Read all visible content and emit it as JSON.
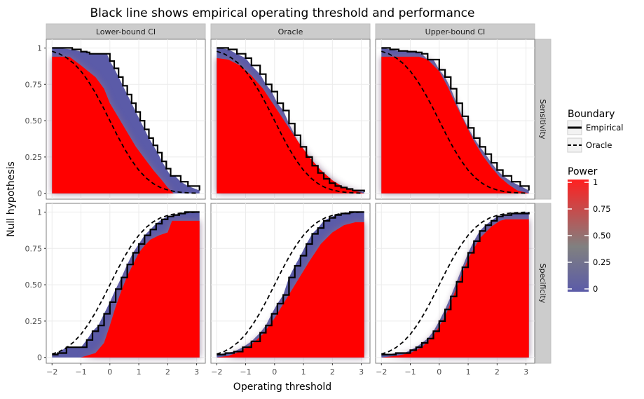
{
  "chart_data": {
    "type": "line",
    "title": "Black line shows empirical operating threshold and performance",
    "xlabel": "Operating threshold",
    "ylabel": "Null hypothesis",
    "xlim": [
      -2.2,
      3.3
    ],
    "ylim": [
      -0.04,
      1.06
    ],
    "x_ticks": [
      -2,
      -1,
      0,
      1,
      2,
      3
    ],
    "x_tick_labels": [
      "−2",
      "−1",
      "0",
      "1",
      "2",
      "3"
    ],
    "y_ticks": [
      0,
      0.25,
      0.5,
      0.75,
      1
    ],
    "y_tick_labels": [
      "0",
      "0.25",
      "0.50",
      "0.75",
      "1"
    ],
    "grid": true,
    "facet_columns": [
      "Lower-bound CI",
      "Oracle",
      "Upper-bound CI"
    ],
    "facet_rows": [
      "Sensitivity",
      "Specificity"
    ],
    "legend": {
      "position": "right",
      "boundary_title": "Boundary",
      "boundary_entries": [
        "Empirical",
        "Oracle"
      ],
      "power_title": "Power",
      "power_labels": [
        "1",
        "0.75",
        "0.50",
        "0.25",
        "0"
      ],
      "power_values": [
        1,
        0.75,
        0.5,
        0.25,
        0
      ],
      "power_colors": {
        "low": "#5b5ba8",
        "mid": "#808080",
        "high": "#ff0000"
      }
    },
    "colors": {
      "empirical": "#000000",
      "oracle": "#000000",
      "panel_strip": "#cccccc",
      "grid": "#ebebeb"
    },
    "oracle_curve": {
      "x": [
        -2.0,
        -1.75,
        -1.5,
        -1.25,
        -1.0,
        -0.75,
        -0.5,
        -0.25,
        0.0,
        0.25,
        0.5,
        0.75,
        1.0,
        1.25,
        1.5,
        1.75,
        2.0,
        2.25,
        2.5,
        2.75,
        3.0
      ],
      "sensitivity": [
        0.977,
        0.96,
        0.933,
        0.894,
        0.841,
        0.773,
        0.691,
        0.599,
        0.5,
        0.401,
        0.309,
        0.227,
        0.159,
        0.106,
        0.067,
        0.04,
        0.023,
        0.012,
        0.006,
        0.003,
        0.001
      ],
      "specificity": [
        0.023,
        0.04,
        0.067,
        0.106,
        0.159,
        0.227,
        0.309,
        0.401,
        0.5,
        0.599,
        0.691,
        0.773,
        0.841,
        0.894,
        0.933,
        0.96,
        0.977,
        0.988,
        0.994,
        0.997,
        0.999
      ]
    },
    "panels": [
      {
        "row": "Sensitivity",
        "col": "Lower-bound CI",
        "empirical": {
          "x": [
            -2.0,
            -1.3,
            -1.0,
            -0.8,
            -0.7,
            -0.1,
            0.0,
            0.15,
            0.3,
            0.45,
            0.6,
            0.75,
            0.9,
            1.05,
            1.2,
            1.35,
            1.5,
            1.65,
            1.8,
            1.95,
            2.1,
            2.25,
            2.45,
            2.7,
            3.1
          ],
          "y": [
            1.0,
            0.99,
            0.975,
            0.97,
            0.96,
            0.96,
            0.91,
            0.86,
            0.8,
            0.74,
            0.68,
            0.62,
            0.56,
            0.5,
            0.44,
            0.38,
            0.33,
            0.28,
            0.22,
            0.17,
            0.12,
            0.12,
            0.08,
            0.05,
            0.02
          ]
        },
        "red_region": {
          "x": [
            -2.0,
            -1.4,
            -1.0,
            -0.5,
            -0.2,
            0.0,
            0.3,
            0.6,
            0.9,
            1.2,
            1.5,
            1.8,
            2.0,
            2.2,
            3.1
          ],
          "y": [
            0.94,
            0.94,
            0.88,
            0.8,
            0.72,
            0.62,
            0.52,
            0.42,
            0.32,
            0.24,
            0.16,
            0.09,
            0.04,
            0.0,
            0.0
          ]
        }
      },
      {
        "row": "Sensitivity",
        "col": "Oracle",
        "empirical": {
          "x": [
            -2.0,
            -1.6,
            -1.3,
            -1.0,
            -0.8,
            -0.5,
            -0.3,
            -0.1,
            0.1,
            0.3,
            0.5,
            0.7,
            0.9,
            1.1,
            1.3,
            1.5,
            1.7,
            1.9,
            2.1,
            2.3,
            2.5,
            2.7,
            3.1
          ],
          "y": [
            1.0,
            0.99,
            0.96,
            0.93,
            0.88,
            0.82,
            0.75,
            0.7,
            0.62,
            0.57,
            0.48,
            0.4,
            0.32,
            0.25,
            0.19,
            0.14,
            0.1,
            0.07,
            0.05,
            0.04,
            0.03,
            0.02,
            0.01
          ]
        },
        "red_region": {
          "x": [
            -2.0,
            -1.6,
            -1.2,
            -0.8,
            -0.4,
            0.0,
            0.4,
            0.8,
            1.2,
            1.6,
            2.0,
            2.4,
            2.8,
            3.1
          ],
          "y": [
            0.93,
            0.92,
            0.88,
            0.81,
            0.72,
            0.6,
            0.48,
            0.36,
            0.25,
            0.16,
            0.09,
            0.04,
            0.015,
            0.0
          ]
        }
      },
      {
        "row": "Sensitivity",
        "col": "Upper-bound CI",
        "empirical": {
          "x": [
            -2.0,
            -1.7,
            -1.4,
            -1.1,
            -0.8,
            -0.6,
            -0.4,
            -0.2,
            0.0,
            0.2,
            0.4,
            0.6,
            0.8,
            1.0,
            1.2,
            1.4,
            1.6,
            1.8,
            2.0,
            2.2,
            2.5,
            2.8,
            3.1
          ],
          "y": [
            1.0,
            0.99,
            0.98,
            0.975,
            0.97,
            0.96,
            0.92,
            0.92,
            0.85,
            0.8,
            0.72,
            0.62,
            0.53,
            0.45,
            0.38,
            0.32,
            0.27,
            0.21,
            0.16,
            0.12,
            0.08,
            0.05,
            0.02
          ]
        },
        "red_region": {
          "x": [
            -2.0,
            -0.7,
            -0.4,
            0.0,
            0.3,
            0.6,
            0.9,
            1.2,
            1.5,
            1.8,
            2.1,
            2.4,
            2.7,
            3.1
          ],
          "y": [
            0.94,
            0.94,
            0.92,
            0.84,
            0.73,
            0.6,
            0.48,
            0.36,
            0.26,
            0.18,
            0.11,
            0.06,
            0.02,
            0.0
          ]
        }
      },
      {
        "row": "Specificity",
        "col": "Lower-bound CI",
        "empirical": {
          "x": [
            -2.0,
            -1.8,
            -1.5,
            -1.0,
            -0.8,
            -0.6,
            -0.4,
            -0.2,
            0.0,
            0.2,
            0.4,
            0.6,
            0.8,
            1.0,
            1.2,
            1.4,
            1.6,
            1.8,
            2.0,
            2.2,
            2.4,
            2.6,
            3.1
          ],
          "y": [
            0.02,
            0.03,
            0.07,
            0.07,
            0.12,
            0.18,
            0.22,
            0.3,
            0.38,
            0.47,
            0.55,
            0.64,
            0.72,
            0.78,
            0.84,
            0.88,
            0.92,
            0.95,
            0.97,
            0.98,
            0.99,
            1.0,
            1.0
          ]
        },
        "red_region": {
          "x": [
            -2.0,
            -1.0,
            -0.5,
            -0.2,
            0.0,
            0.2,
            0.4,
            0.6,
            0.8,
            1.0,
            1.2,
            1.4,
            1.7,
            2.0,
            2.15,
            3.1
          ],
          "y": [
            0.0,
            0.0,
            0.03,
            0.1,
            0.22,
            0.35,
            0.46,
            0.56,
            0.64,
            0.72,
            0.77,
            0.81,
            0.84,
            0.86,
            0.94,
            0.94
          ]
        }
      },
      {
        "row": "Specificity",
        "col": "Oracle",
        "empirical": {
          "x": [
            -2.0,
            -1.7,
            -1.4,
            -1.1,
            -0.8,
            -0.5,
            -0.3,
            -0.1,
            0.1,
            0.3,
            0.5,
            0.7,
            0.9,
            1.1,
            1.3,
            1.5,
            1.7,
            1.9,
            2.1,
            2.3,
            2.6,
            3.1
          ],
          "y": [
            0.02,
            0.03,
            0.04,
            0.07,
            0.11,
            0.17,
            0.22,
            0.3,
            0.37,
            0.43,
            0.55,
            0.63,
            0.7,
            0.78,
            0.85,
            0.89,
            0.94,
            0.96,
            0.98,
            0.99,
            1.0,
            1.0
          ]
        },
        "red_region": {
          "x": [
            -2.0,
            -1.6,
            -1.2,
            -0.8,
            -0.4,
            0.0,
            0.4,
            0.8,
            1.2,
            1.6,
            2.0,
            2.4,
            2.8,
            3.1
          ],
          "y": [
            0.0,
            0.01,
            0.04,
            0.09,
            0.16,
            0.27,
            0.4,
            0.53,
            0.66,
            0.78,
            0.86,
            0.91,
            0.93,
            0.93
          ]
        }
      },
      {
        "row": "Specificity",
        "col": "Upper-bound CI",
        "empirical": {
          "x": [
            -2.0,
            -1.8,
            -1.5,
            -1.2,
            -1.0,
            -0.8,
            -0.6,
            -0.4,
            -0.2,
            0.0,
            0.2,
            0.4,
            0.6,
            0.8,
            1.0,
            1.2,
            1.4,
            1.6,
            1.8,
            2.0,
            2.2,
            2.5,
            3.1
          ],
          "y": [
            0.02,
            0.02,
            0.03,
            0.03,
            0.05,
            0.07,
            0.1,
            0.13,
            0.18,
            0.25,
            0.33,
            0.42,
            0.52,
            0.62,
            0.72,
            0.8,
            0.87,
            0.91,
            0.94,
            0.97,
            0.98,
            0.99,
            1.0
          ]
        },
        "red_region": {
          "x": [
            -2.0,
            -1.5,
            -1.0,
            -0.6,
            -0.2,
            0.2,
            0.6,
            1.0,
            1.4,
            1.8,
            2.1,
            2.3,
            3.1
          ],
          "y": [
            0.0,
            0.01,
            0.03,
            0.07,
            0.15,
            0.28,
            0.48,
            0.68,
            0.82,
            0.9,
            0.94,
            0.95,
            0.95
          ]
        }
      }
    ]
  }
}
